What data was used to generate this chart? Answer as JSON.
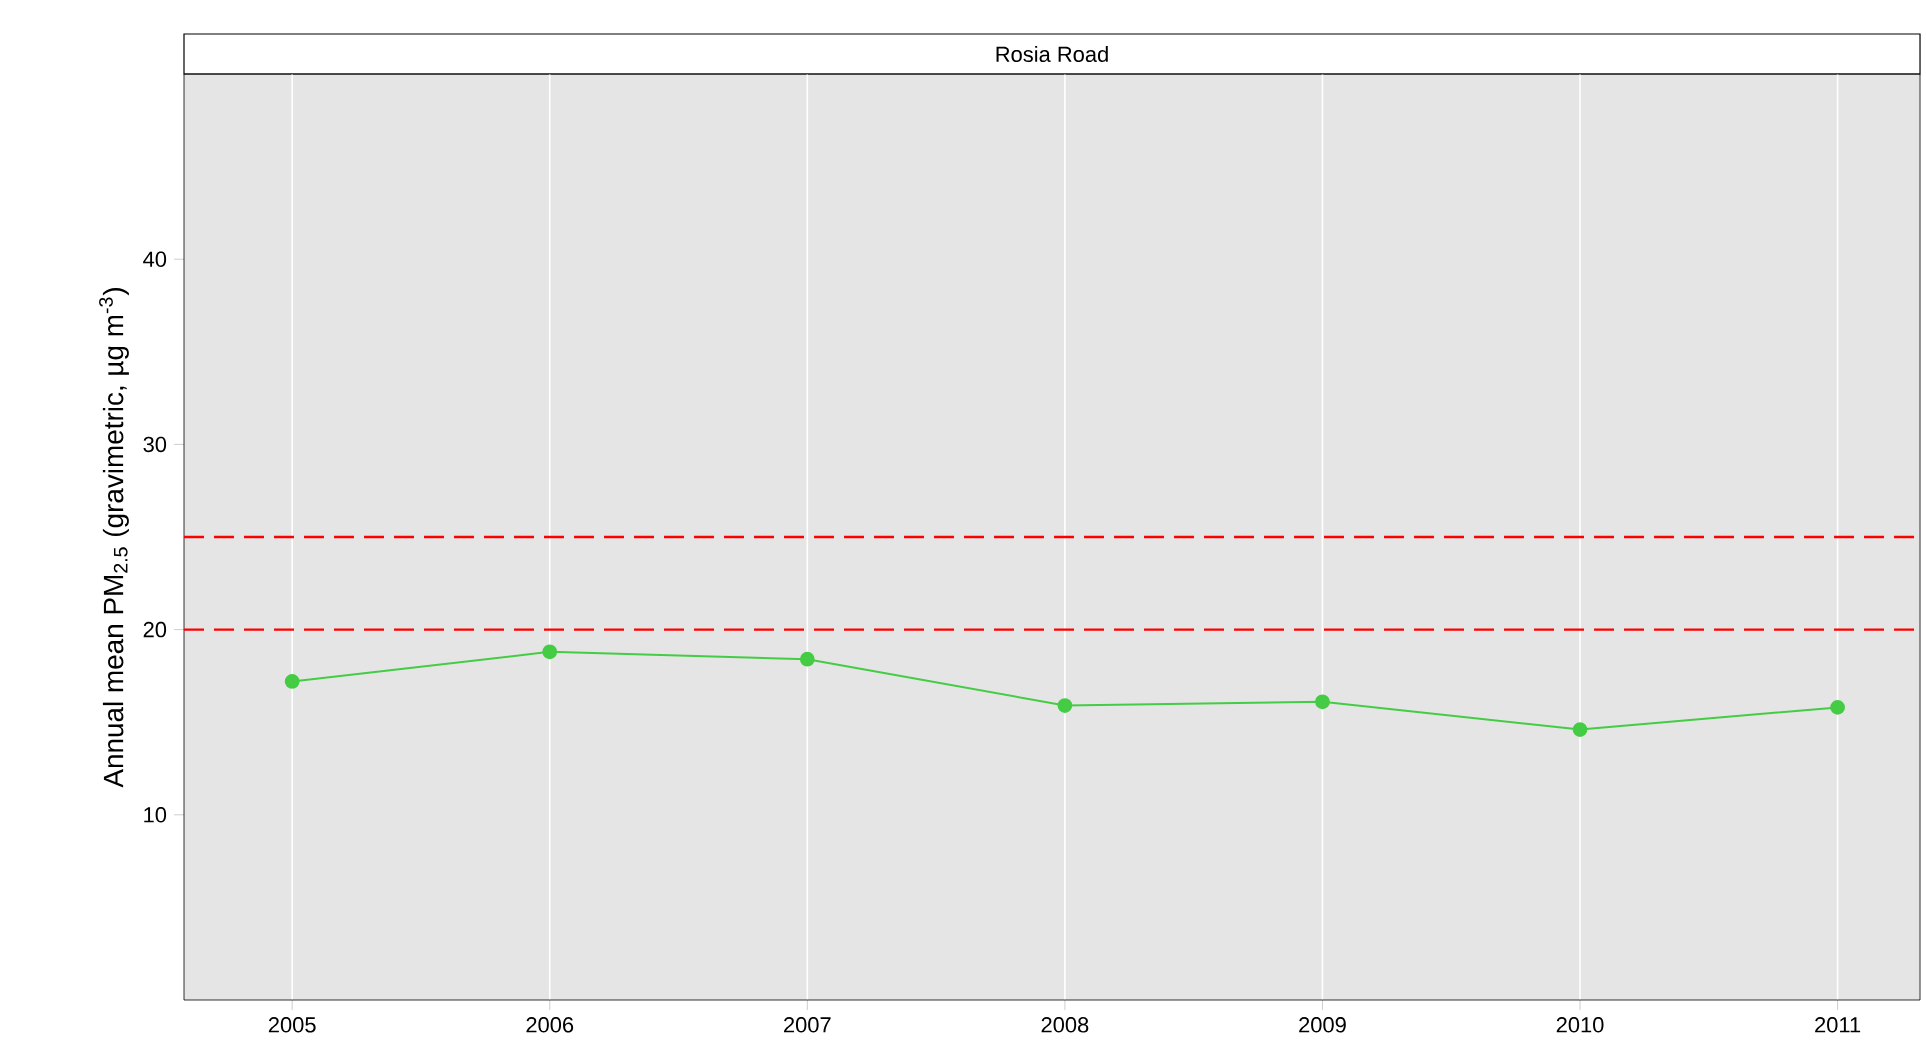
{
  "chart_data": {
    "type": "line",
    "title": "Rosia Road",
    "ylabel": "Annual mean PM$_{2.5}$ (gravimetric, µg m$^{-3}$)",
    "x": [
      2005,
      2006,
      2007,
      2008,
      2009,
      2010,
      2011
    ],
    "series": [
      {
        "color": "#44cc44",
        "values": [
          17.2,
          18.8,
          18.4,
          15.9,
          16.1,
          14.6,
          15.8
        ]
      }
    ],
    "marker": "circle",
    "line_style": "solid",
    "grid": "x",
    "xlim": [
      2004.58,
      2011.32
    ],
    "ylim": [
      0,
      50
    ],
    "xticks": [
      2005,
      2006,
      2007,
      2008,
      2009,
      2010,
      2011
    ],
    "yticks": [
      10,
      20,
      30,
      40
    ],
    "ref_lines": [
      {
        "axis": "y",
        "value": 20,
        "color": "#ff0000",
        "line_style": "dashed"
      },
      {
        "axis": "y",
        "value": 25,
        "color": "#ff0000",
        "line_style": "dashed"
      }
    ]
  }
}
